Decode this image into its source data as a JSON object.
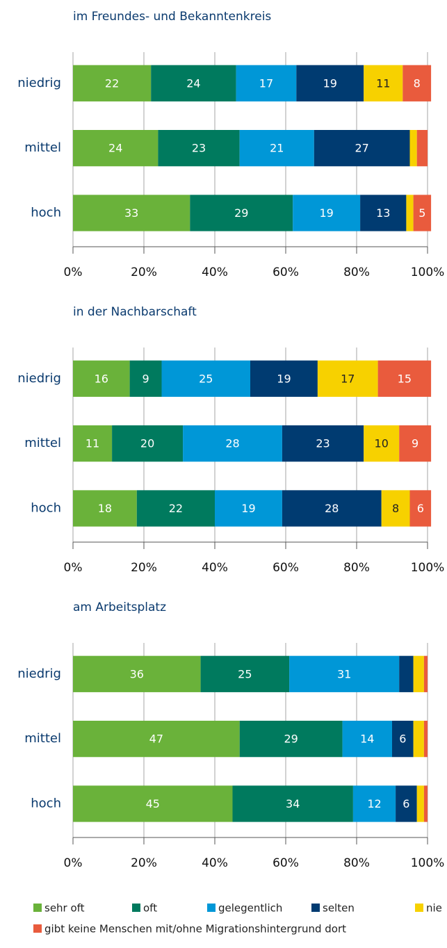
{
  "chart_data": [
    {
      "type": "stacked-barh",
      "title": "im Freundes- und Bekanntenkreis",
      "categories": [
        "niedrig",
        "mittel",
        "hoch"
      ],
      "series": [
        {
          "name": "sehr oft",
          "color": "#6ab23a",
          "values": [
            22,
            24,
            33
          ]
        },
        {
          "name": "oft",
          "color": "#007a5e",
          "values": [
            24,
            23,
            29
          ]
        },
        {
          "name": "gelegentlich",
          "color": "#0097d7",
          "values": [
            17,
            21,
            19
          ]
        },
        {
          "name": "selten",
          "color": "#003b71",
          "values": [
            19,
            27,
            13
          ]
        },
        {
          "name": "nie",
          "color": "#f7d100",
          "values": [
            11,
            2,
            2
          ]
        },
        {
          "name": "gibt keine Menschen mit/ohne Migrationshintergrund dort",
          "color": "#e95b3d",
          "values": [
            8,
            3,
            5
          ]
        }
      ],
      "xlim": [
        0,
        100
      ],
      "xticks": [
        {
          "value": 0,
          "label": "0%"
        },
        {
          "value": 20,
          "label": "20%"
        },
        {
          "value": 40,
          "label": "40%"
        },
        {
          "value": 60,
          "label": "60%"
        },
        {
          "value": 80,
          "label": "80%"
        },
        {
          "value": 100,
          "label": "100%"
        }
      ],
      "grid": true
    },
    {
      "type": "stacked-barh",
      "title": "in der Nachbarschaft",
      "categories": [
        "niedrig",
        "mittel",
        "hoch"
      ],
      "series": [
        {
          "name": "sehr oft",
          "color": "#6ab23a",
          "values": [
            16,
            11,
            18
          ]
        },
        {
          "name": "oft",
          "color": "#007a5e",
          "values": [
            9,
            20,
            22
          ]
        },
        {
          "name": "gelegentlich",
          "color": "#0097d7",
          "values": [
            25,
            28,
            19
          ]
        },
        {
          "name": "selten",
          "color": "#003b71",
          "values": [
            19,
            23,
            28
          ]
        },
        {
          "name": "nie",
          "color": "#f7d100",
          "values": [
            17,
            10,
            8
          ]
        },
        {
          "name": "gibt keine Menschen mit/ohne Migrationshintergrund dort",
          "color": "#e95b3d",
          "values": [
            15,
            9,
            6
          ]
        }
      ],
      "xlim": [
        0,
        100
      ],
      "xticks": [
        {
          "value": 0,
          "label": "0%"
        },
        {
          "value": 20,
          "label": "20%"
        },
        {
          "value": 40,
          "label": "40%"
        },
        {
          "value": 60,
          "label": "60%"
        },
        {
          "value": 80,
          "label": "80%"
        },
        {
          "value": 100,
          "label": "100%"
        }
      ],
      "grid": true
    },
    {
      "type": "stacked-barh",
      "title": "am Arbeitsplatz",
      "categories": [
        "niedrig",
        "mittel",
        "hoch"
      ],
      "series": [
        {
          "name": "sehr oft",
          "color": "#6ab23a",
          "values": [
            36,
            47,
            45
          ]
        },
        {
          "name": "oft",
          "color": "#007a5e",
          "values": [
            25,
            29,
            34
          ]
        },
        {
          "name": "gelegentlich",
          "color": "#0097d7",
          "values": [
            31,
            14,
            12
          ]
        },
        {
          "name": "selten",
          "color": "#003b71",
          "values": [
            4,
            6,
            6
          ]
        },
        {
          "name": "nie",
          "color": "#f7d100",
          "values": [
            3,
            3,
            2
          ]
        },
        {
          "name": "gibt keine Menschen mit/ohne Migrationshintergrund dort",
          "color": "#e95b3d",
          "values": [
            1,
            1,
            1
          ]
        }
      ],
      "xlim": [
        0,
        100
      ],
      "xticks": [
        {
          "value": 0,
          "label": "0%"
        },
        {
          "value": 20,
          "label": "20%"
        },
        {
          "value": 40,
          "label": "40%"
        },
        {
          "value": 60,
          "label": "60%"
        },
        {
          "value": 80,
          "label": "80%"
        },
        {
          "value": 100,
          "label": "100%"
        }
      ],
      "grid": true
    }
  ]
}
